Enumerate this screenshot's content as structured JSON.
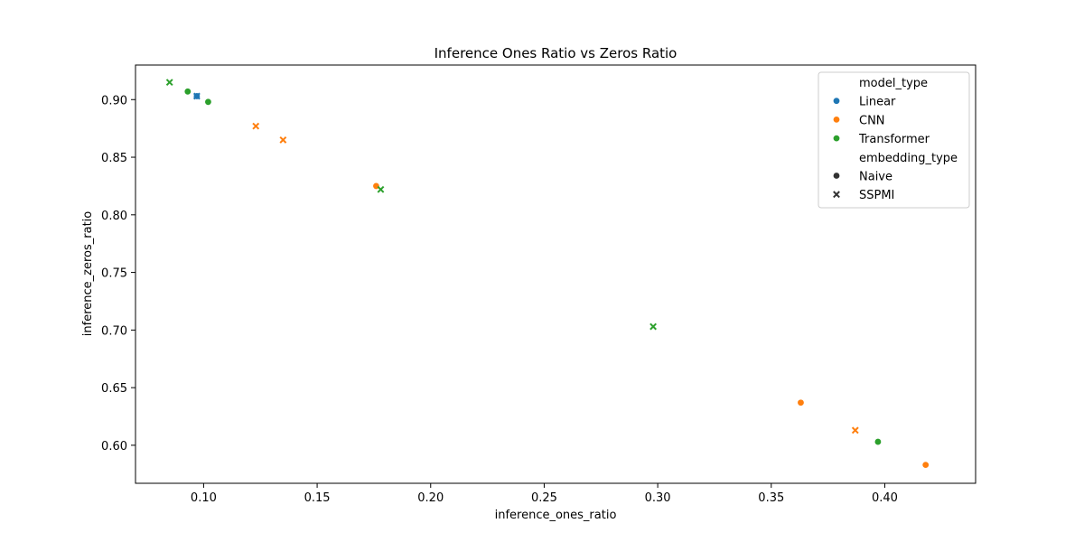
{
  "chart_data": {
    "type": "scatter",
    "title": "Inference Ones Ratio vs Zeros Ratio",
    "xlabel": "inference_ones_ratio",
    "ylabel": "inference_zeros_ratio",
    "xlim": [
      0.07,
      0.44
    ],
    "ylim": [
      0.567,
      0.93
    ],
    "xticks": [
      0.1,
      0.15,
      0.2,
      0.25,
      0.3,
      0.35,
      0.4
    ],
    "xtick_labels": [
      "0.10",
      "0.15",
      "0.20",
      "0.25",
      "0.30",
      "0.35",
      "0.40"
    ],
    "yticks": [
      0.6,
      0.65,
      0.7,
      0.75,
      0.8,
      0.85,
      0.9
    ],
    "ytick_labels": [
      "0.60",
      "0.65",
      "0.70",
      "0.75",
      "0.80",
      "0.85",
      "0.90"
    ],
    "grid": false,
    "legend_position": "top-right",
    "legend": [
      {
        "kind": "header",
        "text": "model_type"
      },
      {
        "kind": "item",
        "marker": "circle",
        "color": "#1f77b4",
        "text": "Linear"
      },
      {
        "kind": "item",
        "marker": "circle",
        "color": "#ff7f0e",
        "text": "CNN"
      },
      {
        "kind": "item",
        "marker": "circle",
        "color": "#2ca02c",
        "text": "Transformer"
      },
      {
        "kind": "header",
        "text": "embedding_type"
      },
      {
        "kind": "item",
        "marker": "circle",
        "color": "#333333",
        "text": "Naive"
      },
      {
        "kind": "item",
        "marker": "x",
        "color": "#333333",
        "text": "SSPMI"
      }
    ],
    "colors": {
      "Linear": "#1f77b4",
      "CNN": "#ff7f0e",
      "Transformer": "#2ca02c"
    },
    "points": [
      {
        "model_type": "Linear",
        "embedding_type": "Naive",
        "x": 0.097,
        "y": 0.903
      },
      {
        "model_type": "Linear",
        "embedding_type": "SSPMI",
        "x": 0.097,
        "y": 0.903
      },
      {
        "model_type": "CNN",
        "embedding_type": "SSPMI",
        "x": 0.123,
        "y": 0.877
      },
      {
        "model_type": "CNN",
        "embedding_type": "SSPMI",
        "x": 0.135,
        "y": 0.865
      },
      {
        "model_type": "CNN",
        "embedding_type": "Naive",
        "x": 0.176,
        "y": 0.825
      },
      {
        "model_type": "CNN",
        "embedding_type": "Naive",
        "x": 0.363,
        "y": 0.637
      },
      {
        "model_type": "CNN",
        "embedding_type": "SSPMI",
        "x": 0.387,
        "y": 0.613
      },
      {
        "model_type": "CNN",
        "embedding_type": "Naive",
        "x": 0.418,
        "y": 0.583
      },
      {
        "model_type": "Transformer",
        "embedding_type": "SSPMI",
        "x": 0.085,
        "y": 0.915
      },
      {
        "model_type": "Transformer",
        "embedding_type": "Naive",
        "x": 0.093,
        "y": 0.907
      },
      {
        "model_type": "Transformer",
        "embedding_type": "Naive",
        "x": 0.102,
        "y": 0.898
      },
      {
        "model_type": "Transformer",
        "embedding_type": "SSPMI",
        "x": 0.178,
        "y": 0.822
      },
      {
        "model_type": "Transformer",
        "embedding_type": "SSPMI",
        "x": 0.298,
        "y": 0.703
      },
      {
        "model_type": "Transformer",
        "embedding_type": "Naive",
        "x": 0.397,
        "y": 0.603
      }
    ]
  }
}
